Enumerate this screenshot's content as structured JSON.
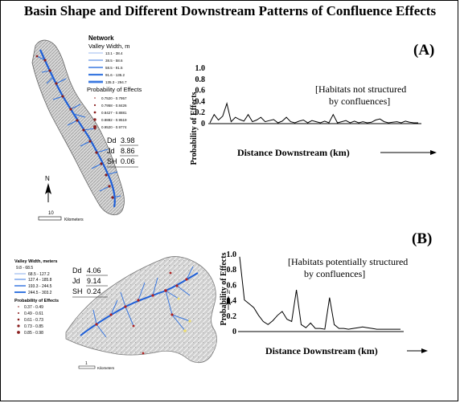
{
  "title": "Basin Shape and Different Downstream Patterns of Confluence Effects",
  "panel_a": {
    "label": "(A)",
    "legend": {
      "heading": "Network",
      "width_label": "Valley Width, m",
      "width_classes": [
        "13.1 - 38.4",
        "38.5 - 58.6",
        "58.5 - 91.5",
        "91.6 - 135.2",
        "135.3 - 294.7"
      ],
      "prob_label": "Probability of Effects",
      "prob_classes": [
        "0.7520 - 0.7957",
        "0.7958 - 0.8426",
        "0.8427 - 0.8881",
        "0.8882 - 0.9519",
        "0.9520 - 0.9774"
      ]
    },
    "stats": [
      {
        "name": "Dd",
        "value": "3.98"
      },
      {
        "name": "Jd",
        "value": "8.86"
      },
      {
        "name": "SH",
        "value": "0.06"
      }
    ],
    "north": "N",
    "scale_value": "10",
    "scale_unit": "Kilometers",
    "annotation_line1": "[Habitats not structured",
    "annotation_line2": "by confluences]"
  },
  "panel_b": {
    "label": "(B)",
    "legend": {
      "width_label": "Valley Width, meters",
      "width_classes": [
        "9.8 - 68.5",
        "68.5 - 127.2",
        "127.4 - 185.8",
        "193.3 - 244.5",
        "244.5 - 303.2"
      ],
      "prob_label": "Probability of Effects",
      "prob_classes": [
        "0.37 - 0.49",
        "0.49 - 0.61",
        "0.61 - 0.73",
        "0.73 - 0.85",
        "0.85 - 0.98"
      ]
    },
    "stats": [
      {
        "name": "Dd",
        "value": "4.06"
      },
      {
        "name": "Jd",
        "value": "9.14"
      },
      {
        "name": "SH",
        "value": "0.24"
      }
    ],
    "north": "N",
    "scale_value": "1",
    "scale_unit": "Kilometers",
    "annotation_line1": "[Habitats potentially structured",
    "annotation_line2": "by confluences]"
  },
  "chart_data": [
    {
      "type": "line",
      "panel": "A",
      "xlabel": "Distance Downstream (km)",
      "ylabel": "Probability of Effects",
      "ylim": [
        0,
        1.0
      ],
      "yticks": [
        0,
        0.2,
        0.4,
        0.6,
        0.8,
        1.0
      ],
      "ytick_labels": [
        "0",
        "0.2",
        "0.4",
        "0.6",
        "0.8",
        "1.0"
      ],
      "x_index": [
        0,
        1,
        2,
        3,
        4,
        5,
        6,
        7,
        8,
        9,
        10,
        11,
        12,
        13,
        14,
        15,
        16,
        17,
        18,
        19,
        20,
        21,
        22,
        23,
        24,
        25,
        26,
        27,
        28,
        29,
        30,
        31,
        32,
        33,
        34,
        35,
        36,
        37,
        38,
        39,
        40,
        41,
        42,
        43,
        44,
        45,
        46,
        47,
        48,
        49
      ],
      "values": [
        0.0,
        0.15,
        0.05,
        0.12,
        0.35,
        0.02,
        0.1,
        0.06,
        0.03,
        0.15,
        0.02,
        0.05,
        0.1,
        0.02,
        0.04,
        0.06,
        0.0,
        0.03,
        0.1,
        0.02,
        0.0,
        0.03,
        0.05,
        0.0,
        0.04,
        0.02,
        0.0,
        0.03,
        0.0,
        0.15,
        0.0,
        0.02,
        0.04,
        0.0,
        0.03,
        0.0,
        0.02,
        0.0,
        0.01,
        0.05,
        0.07,
        0.02,
        0.0,
        0.01,
        0.02,
        0.0,
        0.03,
        0.01,
        0.0,
        0.0
      ],
      "grid": false,
      "legend": "none"
    },
    {
      "type": "line",
      "panel": "B",
      "xlabel": "Distance Downstream (km)",
      "ylabel": "Probability of Effects",
      "ylim": [
        0,
        1.0
      ],
      "yticks": [
        0,
        0.2,
        0.4,
        0.6,
        0.8,
        1.0
      ],
      "ytick_labels": [
        "0",
        "0.2",
        "0.4",
        "0.6",
        "0.8",
        "1.0"
      ],
      "x_index": [
        0,
        1,
        2,
        3,
        4,
        5,
        6,
        7,
        8,
        9,
        10,
        11,
        12,
        13,
        14,
        15,
        16,
        17,
        18,
        19,
        20,
        21,
        22,
        23,
        24,
        25,
        26,
        27,
        28,
        29,
        30,
        31,
        32,
        33,
        34
      ],
      "values": [
        0.96,
        0.4,
        0.35,
        0.3,
        0.2,
        0.12,
        0.08,
        0.13,
        0.2,
        0.25,
        0.15,
        0.12,
        0.53,
        0.08,
        0.04,
        0.1,
        0.03,
        0.03,
        0.02,
        0.43,
        0.08,
        0.03,
        0.03,
        0.02,
        0.03,
        0.04,
        0.05,
        0.04,
        0.03,
        0.02,
        0.02,
        0.02,
        0.02,
        0.02,
        0.02
      ],
      "grid": false,
      "legend": "none"
    }
  ]
}
